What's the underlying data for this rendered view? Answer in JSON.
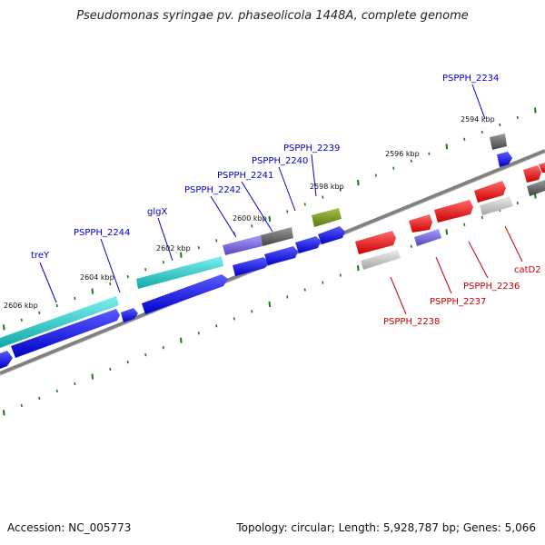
{
  "title": "Pseudomonas syringae pv. phaseolicola 1448A, complete genome",
  "footer": {
    "accession": "Accession: NC_005773",
    "topology": "Topology: circular; Length: 5,928,787 bp; Genes: 5,066"
  },
  "colors": {
    "forward_gene": "#1a1ae6",
    "reverse_gene": "#e61414",
    "cds_cyan": "#1ec8c8",
    "cds_purple": "#6a5acd",
    "cds_gray": "#666666",
    "cds_olive": "#6b8e23",
    "pseudo_gray": "#bdbdbd",
    "backbone": "#808080",
    "tick": "#1a7a1a",
    "forward_label": "#0000cc",
    "reverse_label": "#cc0000"
  },
  "axis_labels": [
    "2606 kbp",
    "2604 kbp",
    "2602 kbp",
    "2600 kbp",
    "2598 kbp",
    "2596 kbp",
    "2594 kbp"
  ],
  "forward_gene_labels": [
    "treY",
    "PSPPH_2244",
    "glgX",
    "PSPPH_2242",
    "PSPPH_2241",
    "PSPPH_2240",
    "PSPPH_2239",
    "PSPPH_2234"
  ],
  "reverse_gene_labels": [
    "PSPPH_2238",
    "PSPPH_2237",
    "PSPPH_2236",
    "catD2"
  ]
}
